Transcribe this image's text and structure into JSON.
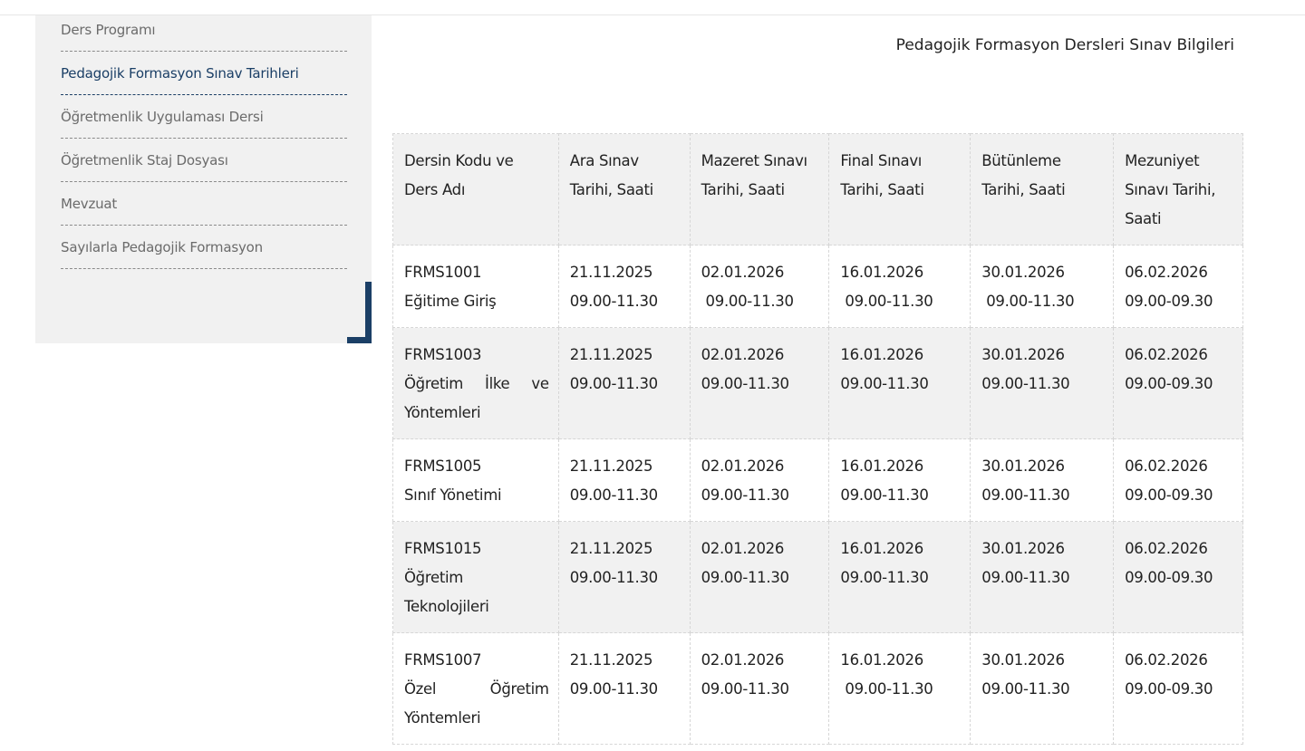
{
  "sidebar": {
    "items": [
      {
        "label": "Ders Programı",
        "active": false
      },
      {
        "label": "Pedagojik Formasyon Sınav Tarihleri",
        "active": true
      },
      {
        "label": "Öğretmenlik Uygulaması Dersi",
        "active": false
      },
      {
        "label": "Öğretmenlik Staj Dosyası",
        "active": false
      },
      {
        "label": "Mevzuat",
        "active": false
      },
      {
        "label": "Sayılarla Pedagojik Formasyon",
        "active": false
      }
    ],
    "accent_color": "#1b3f66"
  },
  "main": {
    "title": "Pedagojik Formasyon Dersleri Sınav Bilgileri",
    "table": {
      "headers": [
        "Dersin Kodu ve Ders Adı",
        "Ara Sınav Tarihi, Saati",
        "Mazeret Sınavı Tarihi, Saati",
        "Final Sınavı Tarihi, Saati",
        "Bütünleme Tarihi, Saati",
        "Mezuniyet Sınavı Tarihi, Saati"
      ],
      "rows": [
        [
          "FRMS1001\nEğitime Giriş",
          "21.11.2025\n09.00-11.30",
          "02.01.2026\n 09.00-11.30",
          "16.01.2026\n 09.00-11.30",
          "30.01.2026\n 09.00-11.30",
          "06.02.2026\n09.00-09.30"
        ],
        [
          "FRMS1003\nÖğretim İlke ve Yöntemleri",
          "21.11.2025\n09.00-11.30",
          "02.01.2026\n09.00-11.30",
          "16.01.2026\n09.00-11.30",
          "30.01.2026\n09.00-11.30",
          "06.02.2026\n09.00-09.30"
        ],
        [
          "FRMS1005\nSınıf Yönetimi",
          "21.11.2025\n09.00-11.30",
          "02.01.2026\n09.00-11.30",
          "16.01.2026\n09.00-11.30",
          "30.01.2026\n09.00-11.30",
          "06.02.2026\n09.00-09.30"
        ],
        [
          "FRMS1015\nÖğretim Teknolojileri",
          "21.11.2025\n09.00-11.30",
          "02.01.2026\n09.00-11.30",
          "16.01.2026\n09.00-11.30",
          "30.01.2026\n09.00-11.30",
          "06.02.2026\n09.00-09.30"
        ],
        [
          "FRMS1007\nÖzel Öğretim Yöntemleri",
          "21.11.2025\n09.00-11.30",
          "02.01.2026\n09.00-11.30",
          "16.01.2026\n 09.00-11.30",
          "30.01.2026\n09.00-11.30",
          "06.02.2026\n09.00-09.30"
        ]
      ]
    }
  }
}
